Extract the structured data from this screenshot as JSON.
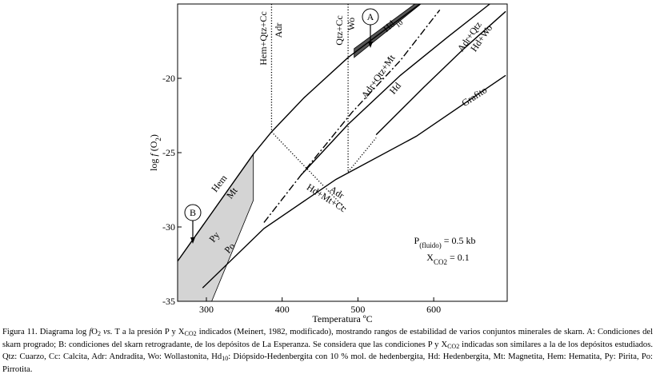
{
  "chart_data": {
    "type": "line",
    "xlabel": [
      {
        "text": "Temperatura ºC"
      }
    ],
    "ylabel": [
      {
        "text": "log "
      },
      {
        "text": "f",
        "style": "italic"
      },
      {
        "text": " (O"
      },
      {
        "text": "2",
        "style": "sub"
      },
      {
        "text": ")"
      }
    ],
    "xlim": [
      262,
      697
    ],
    "ylim": [
      -35,
      -15
    ],
    "xticks": [
      300,
      400,
      500,
      600
    ],
    "yticks": [
      -20,
      -25,
      -30,
      -35
    ],
    "regions": [
      {
        "color": "#d4d4d4",
        "x": [
          262,
          362,
          362,
          307,
          262
        ],
        "y": [
          -32.3,
          -25.1,
          -28.2,
          -35,
          -35
        ]
      },
      {
        "color": "#555555",
        "x": [
          495,
          575,
          583,
          495
        ],
        "y": [
          -18.0,
          -15,
          -15,
          -18.6
        ]
      }
    ],
    "series": [
      {
        "style": "solid",
        "color": "#000000",
        "x": [
          262,
          362,
          386,
          429,
          487,
          534,
          582
        ],
        "y": [
          -32.3,
          -25.1,
          -23.6,
          -21.3,
          -18.6,
          -16.8,
          -15
        ]
      },
      {
        "style": "dashdot",
        "color": "#000000",
        "x": [
          376,
          425,
          492,
          556,
          608
        ],
        "y": [
          -29.7,
          -26.5,
          -22.3,
          -18.8,
          -15.4
        ]
      },
      {
        "style": "solid",
        "color": "#000000",
        "x": [
          425,
          487,
          556,
          619,
          674
        ],
        "y": [
          -26.5,
          -23.1,
          -19.8,
          -17.2,
          -15
        ]
      },
      {
        "style": "solid",
        "color": "#000000",
        "x": [
          524,
          587,
          640,
          695
        ],
        "y": [
          -23.8,
          -20.6,
          -18.0,
          -15.5
        ]
      },
      {
        "style": "solid",
        "color": "#000000",
        "x": [
          295,
          376,
          471,
          577,
          695
        ],
        "y": [
          -34.1,
          -30.1,
          -26.8,
          -23.9,
          -19.8
        ]
      },
      {
        "style": "dotted",
        "color": "#000000",
        "x": [
          386,
          386
        ],
        "y": [
          -15,
          -23.6
        ]
      },
      {
        "style": "dotted",
        "color": "#000000",
        "x": [
          487,
          487
        ],
        "y": [
          -15,
          -26.3
        ]
      },
      {
        "style": "dotted",
        "color": "#000000",
        "x": [
          386,
          484
        ],
        "y": [
          -23.6,
          -28.8
        ]
      },
      {
        "style": "dotted",
        "color": "#000000",
        "x": [
          487,
          524
        ],
        "y": [
          -26.3,
          -24.0
        ]
      }
    ],
    "annotations": [
      [
        {
          "text": "Hem+Qtz+Cc"
        }
      ],
      [
        {
          "text": "Adr"
        }
      ],
      [
        {
          "text": "Qtz+Cc"
        }
      ],
      [
        {
          "text": "Wo"
        }
      ],
      [
        {
          "text": "A"
        }
      ],
      [
        {
          "text": "Hd"
        },
        {
          "text": "10",
          "style": "sub"
        }
      ],
      [
        {
          "text": "Adr+Qtz"
        }
      ],
      [
        {
          "text": "Hd+Wo"
        }
      ],
      [
        {
          "text": "Adr+Qtz+Mt"
        }
      ],
      [
        {
          "text": "Hd"
        }
      ],
      [
        {
          "text": "Grafito"
        }
      ],
      [
        {
          "text": "Hem"
        }
      ],
      [
        {
          "text": "Mt"
        }
      ],
      [
        {
          "text": "Py"
        }
      ],
      [
        {
          "text": "Po"
        }
      ],
      [
        {
          "text": "B"
        }
      ],
      [
        {
          "text": "Adr"
        }
      ],
      [
        {
          "text": "Hd+Mt+Cc"
        }
      ],
      [
        {
          "text": "P"
        },
        {
          "text": "(fluido)",
          "style": "sub"
        },
        {
          "text": " = 0.5 kb"
        }
      ],
      [
        {
          "text": "X"
        },
        {
          "text": "CO2",
          "style": "sub"
        },
        {
          "text": " = 0.1"
        }
      ]
    ],
    "caption": [
      {
        "text": "Figura 11. Diagrama log "
      },
      {
        "text": "f",
        "style": "italic"
      },
      {
        "text": "O"
      },
      {
        "text": "2",
        "style": "sub"
      },
      {
        "text": " "
      },
      {
        "text": "vs.",
        "style": "italic"
      },
      {
        "text": " T a la presión P y X"
      },
      {
        "text": "CO2",
        "style": "sub"
      },
      {
        "text": " indicados (Meinert, 1982, modificado), mostrando rangos de estabilidad de varios conjuntos minerales de skarn. A: Condiciones del skarn progrado; B: condiciones del skarn retrogradante, de los depósitos de La Esperanza. Se considera que las condiciones P y X"
      },
      {
        "text": "CO2",
        "style": "sub"
      },
      {
        "text": " indicadas son similares a la de los depósitos estudiados. Qtz: Cuarzo, Cc: Calcita, Adr: Andradita, Wo: Wollastonita, Hd"
      },
      {
        "text": "10",
        "style": "sub"
      },
      {
        "text": ": Diópsido-Hedenbergita con 10 % mol. de hedenbergita, Hd: Hedenbergita, Mt: Magnetita, Hem: Hematita, Py: Pirita, Po: Pirrotita."
      }
    ]
  }
}
